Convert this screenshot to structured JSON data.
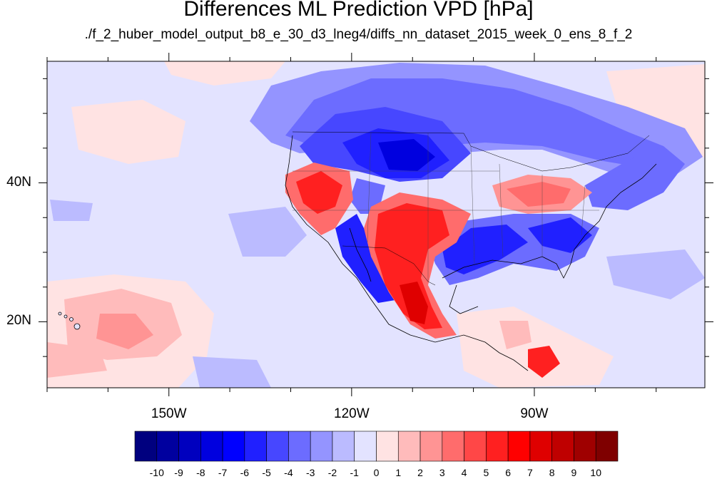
{
  "title": "Differences ML Prediction VPD [hPa]",
  "subtitle": "./f_2_huber_model_output_b8_e_30_d3_lneg4/diffs_nn_dataset_2015_week_0_ens_8_f_2",
  "map": {
    "lon_range": [
      -170,
      -62
    ],
    "lat_range": [
      10.5,
      57.5
    ],
    "lon_labels": [
      {
        "lon": -150,
        "text": "150W"
      },
      {
        "lon": -120,
        "text": "120W"
      },
      {
        "lon": -90,
        "text": "90W"
      }
    ],
    "lat_labels": [
      {
        "lat": 40,
        "text": "40N"
      },
      {
        "lat": 20,
        "text": "20N"
      }
    ],
    "colormap": "blue-white-red diverging"
  },
  "colorbar": {
    "labels": [
      "-10",
      "-9",
      "-8",
      "-7",
      "-6",
      "-5",
      "-4",
      "-3",
      "-2",
      "-1",
      "0",
      "1",
      "2",
      "3",
      "4",
      "5",
      "6",
      "7",
      "8",
      "9",
      "10"
    ],
    "colors": [
      "#00007f",
      "#00009f",
      "#0000bf",
      "#0000df",
      "#0000ff",
      "#2020ff",
      "#4747ff",
      "#6c6cff",
      "#9494ff",
      "#bbbbff",
      "#e3e3ff",
      "#ffe3e3",
      "#ffbbbb",
      "#ff9494",
      "#ff6c6c",
      "#ff4747",
      "#ff2020",
      "#ff0000",
      "#df0000",
      "#bf0000",
      "#9f0000",
      "#7f0000"
    ]
  }
}
